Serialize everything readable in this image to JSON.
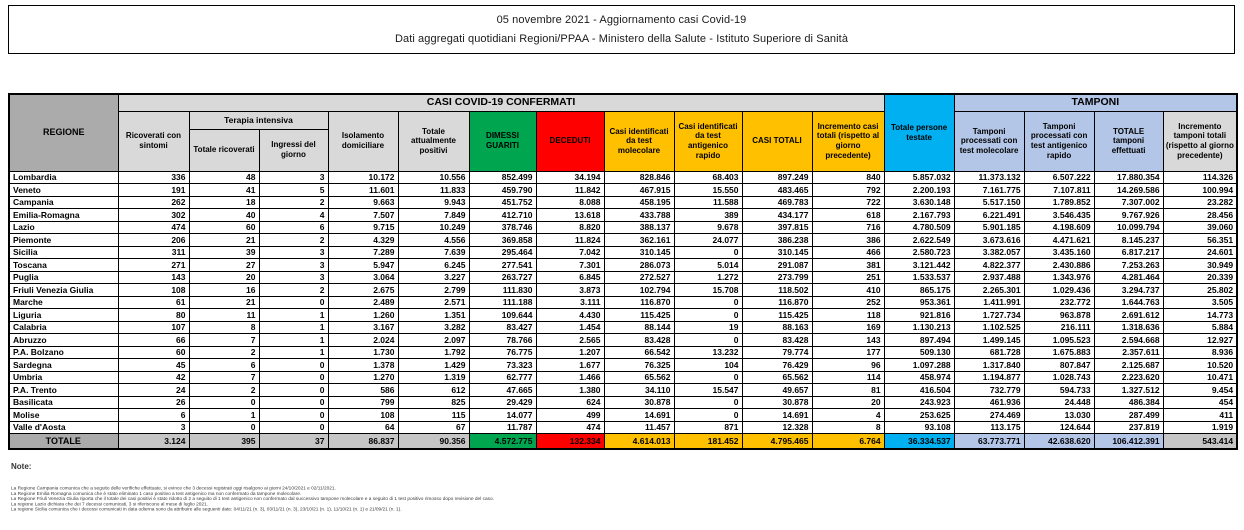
{
  "title_box": {
    "line1": "05 novembre 2021 - Aggiornamento casi Covid-19",
    "line2": "Dati aggregati quotidiani Regioni/PPAA - Ministero della Salute - Istituto Superiore di Sanità"
  },
  "table": {
    "group_headers": {
      "confermati": "CASI COVID-19 CONFERMATI",
      "tamponi": "TAMPONI",
      "terapia_intensiva": "Terapia intensiva"
    },
    "header": {
      "regione": "REGIONE",
      "ricoverati_sintomi": "Ricoverati con sintomi",
      "ti_totale": "Totale ricoverati",
      "ti_ingressi": "Ingressi del giorno",
      "isolamento": "Isolamento domiciliare",
      "attuali_positivi": "Totale attualmente positivi",
      "dimessi": "DIMESSI GUARITI",
      "deceduti": "DECEDUTI",
      "casi_molecolare": "Casi identificati da test molecolare",
      "casi_antigenico": "Casi identificati da test antigenico rapido",
      "casi_totali": "CASI TOTALI",
      "incremento_casi": "Incremento casi totali (rispetto al giorno precedente)",
      "persone_testate": "Totale persone testate",
      "tamponi_molecolare": "Tamponi processati con test molecolare",
      "tamponi_antigenico": "Tamponi processati con test antigenico rapido",
      "totale_tamponi": "TOTALE tamponi effettuati",
      "incremento_tamponi": "Incremento tamponi totali (rispetto al giorno precedente)"
    },
    "rows": [
      {
        "name": "Lombardia",
        "values": [
          "336",
          "48",
          "3",
          "10.172",
          "10.556",
          "852.499",
          "34.194",
          "828.846",
          "68.403",
          "897.249",
          "840",
          "5.857.032",
          "11.373.132",
          "6.507.222",
          "17.880.354",
          "114.326"
        ]
      },
      {
        "name": "Veneto",
        "values": [
          "191",
          "41",
          "5",
          "11.601",
          "11.833",
          "459.790",
          "11.842",
          "467.915",
          "15.550",
          "483.465",
          "792",
          "2.200.193",
          "7.161.775",
          "7.107.811",
          "14.269.586",
          "100.994"
        ]
      },
      {
        "name": "Campania",
        "values": [
          "262",
          "18",
          "2",
          "9.663",
          "9.943",
          "451.752",
          "8.088",
          "458.195",
          "11.588",
          "469.783",
          "722",
          "3.630.148",
          "5.517.150",
          "1.789.852",
          "7.307.002",
          "23.282"
        ]
      },
      {
        "name": "Emilia-Romagna",
        "values": [
          "302",
          "40",
          "4",
          "7.507",
          "7.849",
          "412.710",
          "13.618",
          "433.788",
          "389",
          "434.177",
          "618",
          "2.167.793",
          "6.221.491",
          "3.546.435",
          "9.767.926",
          "28.456"
        ]
      },
      {
        "name": "Lazio",
        "values": [
          "474",
          "60",
          "6",
          "9.715",
          "10.249",
          "378.746",
          "8.820",
          "388.137",
          "9.678",
          "397.815",
          "716",
          "4.780.509",
          "5.901.185",
          "4.198.609",
          "10.099.794",
          "39.060"
        ]
      },
      {
        "name": "Piemonte",
        "values": [
          "206",
          "21",
          "2",
          "4.329",
          "4.556",
          "369.858",
          "11.824",
          "362.161",
          "24.077",
          "386.238",
          "386",
          "2.622.549",
          "3.673.616",
          "4.471.621",
          "8.145.237",
          "56.351"
        ]
      },
      {
        "name": "Sicilia",
        "values": [
          "311",
          "39",
          "3",
          "7.289",
          "7.639",
          "295.464",
          "7.042",
          "310.145",
          "0",
          "310.145",
          "466",
          "2.580.723",
          "3.382.057",
          "3.435.160",
          "6.817.217",
          "24.601"
        ]
      },
      {
        "name": "Toscana",
        "values": [
          "271",
          "27",
          "3",
          "5.947",
          "6.245",
          "277.541",
          "7.301",
          "286.073",
          "5.014",
          "291.087",
          "381",
          "3.121.442",
          "4.822.377",
          "2.430.886",
          "7.253.263",
          "30.949"
        ]
      },
      {
        "name": "Puglia",
        "values": [
          "143",
          "20",
          "3",
          "3.064",
          "3.227",
          "263.727",
          "6.845",
          "272.527",
          "1.272",
          "273.799",
          "251",
          "1.533.537",
          "2.937.488",
          "1.343.976",
          "4.281.464",
          "20.339"
        ]
      },
      {
        "name": "Friuli Venezia Giulia",
        "values": [
          "108",
          "16",
          "2",
          "2.675",
          "2.799",
          "111.830",
          "3.873",
          "102.794",
          "15.708",
          "118.502",
          "410",
          "865.175",
          "2.265.301",
          "1.029.436",
          "3.294.737",
          "25.802"
        ]
      },
      {
        "name": "Marche",
        "values": [
          "61",
          "21",
          "0",
          "2.489",
          "2.571",
          "111.188",
          "3.111",
          "116.870",
          "0",
          "116.870",
          "252",
          "953.361",
          "1.411.991",
          "232.772",
          "1.644.763",
          "3.505"
        ]
      },
      {
        "name": "Liguria",
        "values": [
          "80",
          "11",
          "1",
          "1.260",
          "1.351",
          "109.644",
          "4.430",
          "115.425",
          "0",
          "115.425",
          "118",
          "921.816",
          "1.727.734",
          "963.878",
          "2.691.612",
          "14.773"
        ]
      },
      {
        "name": "Calabria",
        "values": [
          "107",
          "8",
          "1",
          "3.167",
          "3.282",
          "83.427",
          "1.454",
          "88.144",
          "19",
          "88.163",
          "169",
          "1.130.213",
          "1.102.525",
          "216.111",
          "1.318.636",
          "5.884"
        ]
      },
      {
        "name": "Abruzzo",
        "values": [
          "66",
          "7",
          "1",
          "2.024",
          "2.097",
          "78.766",
          "2.565",
          "83.428",
          "0",
          "83.428",
          "143",
          "897.494",
          "1.499.145",
          "1.095.523",
          "2.594.668",
          "12.927"
        ]
      },
      {
        "name": "P.A. Bolzano",
        "values": [
          "60",
          "2",
          "1",
          "1.730",
          "1.792",
          "76.775",
          "1.207",
          "66.542",
          "13.232",
          "79.774",
          "177",
          "509.130",
          "681.728",
          "1.675.883",
          "2.357.611",
          "8.936"
        ]
      },
      {
        "name": "Sardegna",
        "values": [
          "45",
          "6",
          "0",
          "1.378",
          "1.429",
          "73.323",
          "1.677",
          "76.325",
          "104",
          "76.429",
          "96",
          "1.097.288",
          "1.317.840",
          "807.847",
          "2.125.687",
          "10.520"
        ]
      },
      {
        "name": "Umbria",
        "values": [
          "42",
          "7",
          "0",
          "1.270",
          "1.319",
          "62.777",
          "1.466",
          "65.562",
          "0",
          "65.562",
          "114",
          "458.974",
          "1.194.877",
          "1.028.743",
          "2.223.620",
          "10.471"
        ]
      },
      {
        "name": "P.A. Trento",
        "values": [
          "24",
          "2",
          "0",
          "586",
          "612",
          "47.665",
          "1.380",
          "34.110",
          "15.547",
          "49.657",
          "81",
          "416.504",
          "732.779",
          "594.733",
          "1.327.512",
          "9.454"
        ]
      },
      {
        "name": "Basilicata",
        "values": [
          "26",
          "0",
          "0",
          "799",
          "825",
          "29.429",
          "624",
          "30.878",
          "0",
          "30.878",
          "20",
          "243.923",
          "461.936",
          "24.448",
          "486.384",
          "454"
        ]
      },
      {
        "name": "Molise",
        "values": [
          "6",
          "1",
          "0",
          "108",
          "115",
          "14.077",
          "499",
          "14.691",
          "0",
          "14.691",
          "4",
          "253.625",
          "274.469",
          "13.030",
          "287.499",
          "411"
        ]
      },
      {
        "name": "Valle d'Aosta",
        "values": [
          "3",
          "0",
          "0",
          "64",
          "67",
          "11.787",
          "474",
          "11.457",
          "871",
          "12.328",
          "8",
          "93.108",
          "113.175",
          "124.644",
          "237.819",
          "1.919"
        ]
      }
    ],
    "totale": {
      "label": "TOTALE",
      "values": [
        "3.124",
        "395",
        "37",
        "86.837",
        "90.356",
        "4.572.775",
        "132.334",
        "4.614.013",
        "181.452",
        "4.795.465",
        "6.764",
        "36.334.537",
        "63.773.771",
        "42.638.620",
        "106.412.391",
        "543.414"
      ]
    }
  },
  "notes": {
    "label": "Note:",
    "lines": [
      "La Regione Campania comunica che a seguito delle verifiche effettuate, si evince che 3 decessi registrati oggi risalgono ai giorni 24/10/2021 e 02/11/2021.",
      "La Regione Emilia Romagna comunica che è stato eliminato 1 caso positivo a test antigenico ma non confermato da tampone molecolare.",
      "La Regione Friuli Venezia Giulia riporta che il totale dei casi positivi è stato ridotto di 2 a seguito di 1 test antigenico non confermato dal successivo tampone molecolare e a seguito di 1 test positivo rimosso dopo revisione del caso.",
      "La regione Lazio dichiara che dei 7 decessi comunicati, 3 si riferiscono al mese di luglio 2021.",
      "La regione Sicilia comunica che i decessi comunicati in data odierna sono da attribuire alle seguenti date: 04/11/21 (n. 3), 03/11/21 (n. 3), 23/10/21 (n. 1), 11/10/21 (n. 1) e 21/09/21 (n. 1)."
    ]
  },
  "colors": {
    "green": "#00A550",
    "red": "#FE0000",
    "yellow": "#FFC000",
    "cyan": "#00B0F0",
    "light_blue": "#B4C6E7",
    "header_gray": "#D9D9D9",
    "region_gray": "#ABABAB",
    "totale_gray": "#C6C6C6"
  }
}
